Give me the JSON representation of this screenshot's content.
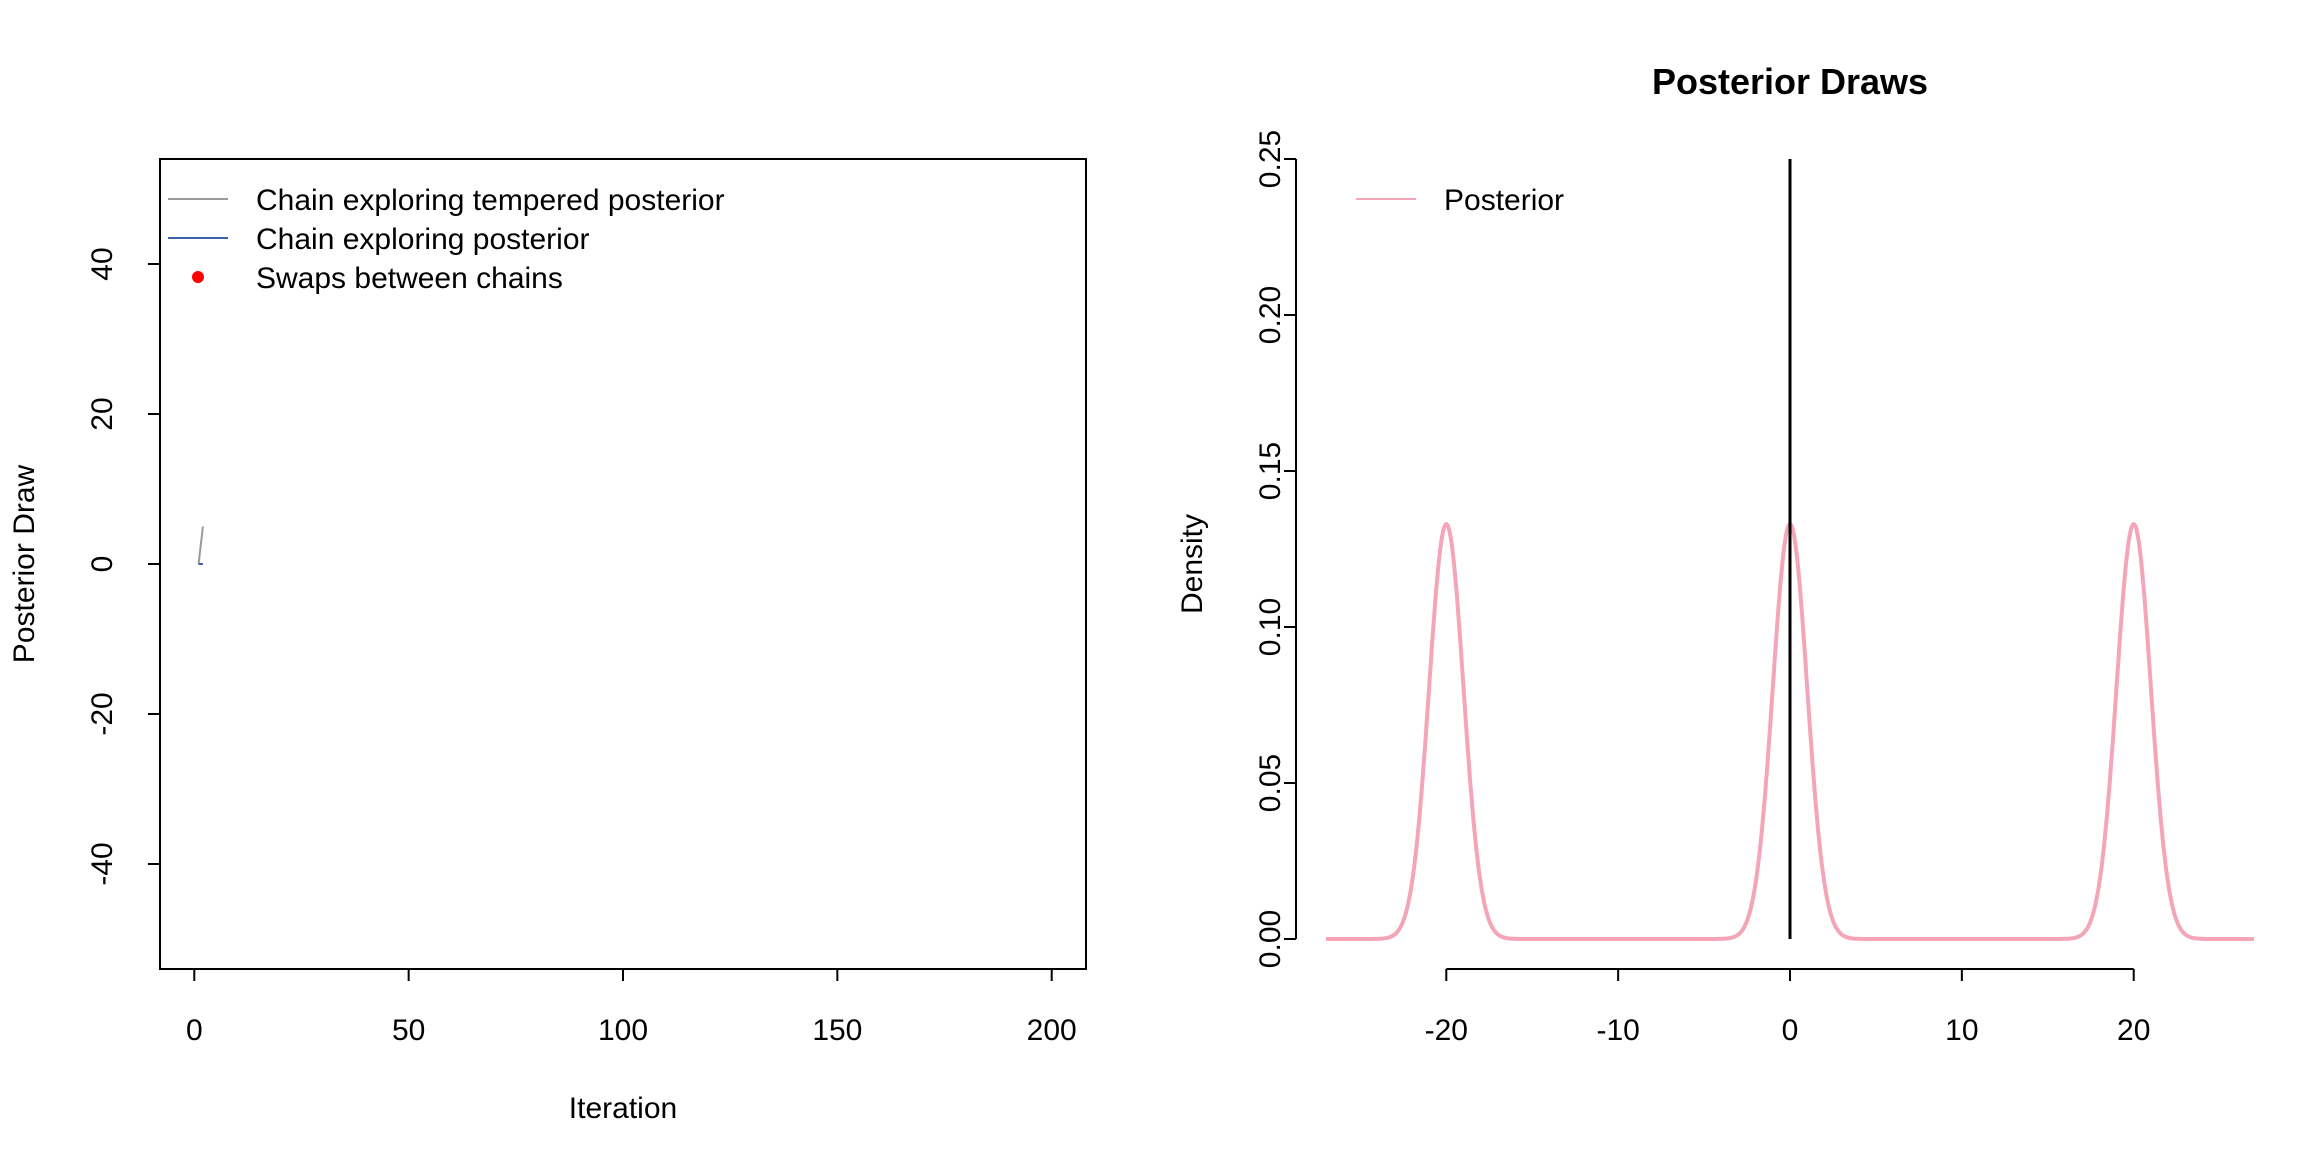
{
  "chart_data": [
    {
      "type": "line",
      "title": "",
      "xlabel": "Iteration",
      "ylabel": "Posterior Draw",
      "xlim": [
        -8,
        208
      ],
      "ylim": [
        -54,
        54
      ],
      "xticks": [
        0,
        50,
        100,
        150,
        200
      ],
      "yticks": [
        -40,
        -20,
        0,
        20,
        40
      ],
      "grid": false,
      "legend_position": "top-left",
      "legend": [
        {
          "label": "Chain exploring tempered posterior",
          "kind": "line",
          "color": "#9a9a9a"
        },
        {
          "label": "Chain exploring posterior",
          "kind": "line",
          "color": "#3b5fa8"
        },
        {
          "label": "Swaps between chains",
          "kind": "point",
          "color": "#ff0000"
        }
      ],
      "series": [
        {
          "kind": "line",
          "color": "#9a9a9a",
          "x": [
            1,
            2
          ],
          "y": [
            0,
            5
          ]
        },
        {
          "kind": "line",
          "color": "#3b5fa8",
          "x": [
            1,
            2
          ],
          "y": [
            0,
            0
          ]
        }
      ],
      "swaps": []
    },
    {
      "type": "line",
      "title": "Posterior Draws",
      "xlabel": "",
      "ylabel": "Density",
      "xlim": [
        -27,
        27
      ],
      "ylim": [
        0,
        0.25
      ],
      "xticks": [
        -20,
        -10,
        0,
        10,
        20
      ],
      "yticks": [
        0.0,
        0.05,
        0.1,
        0.15,
        0.2,
        0.25
      ],
      "ytick_labels": [
        "0.00",
        "0.05",
        "0.10",
        "0.15",
        "0.20",
        "0.25"
      ],
      "grid": false,
      "legend_position": "top-left",
      "legend": [
        {
          "label": "Posterior",
          "kind": "line",
          "color": "#f4a6b8"
        }
      ],
      "density": {
        "components": [
          {
            "mean": -20,
            "sd": 1,
            "weight": 0.3333
          },
          {
            "mean": 0,
            "sd": 1,
            "weight": 0.3333
          },
          {
            "mean": 20,
            "sd": 1,
            "weight": 0.3333
          }
        ],
        "color": "#f4a6b8"
      },
      "vertical_line": {
        "x": 0,
        "color": "#000000"
      }
    }
  ]
}
